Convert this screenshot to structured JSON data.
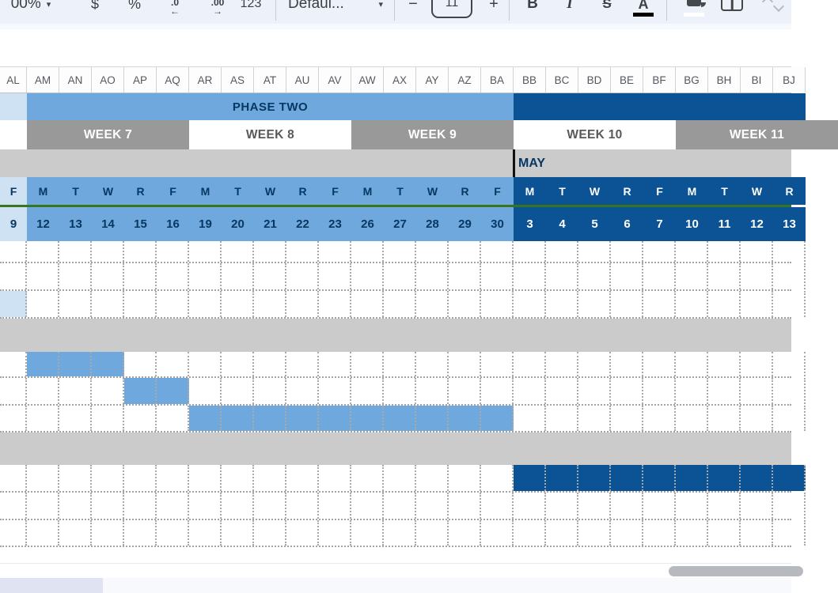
{
  "toolbar": {
    "zoom_value": "00%",
    "currency": "$",
    "percent": "%",
    "decrease_decimal_label": ".0",
    "decrease_decimal_arrow": "←",
    "increase_decimal_label": ".00",
    "increase_decimal_arrow": "→",
    "more_formats": "123",
    "font_name": "Defaul...",
    "decrease_font_size": "−",
    "font_size": "11",
    "increase_font_size": "+",
    "bold": "B",
    "italic": "I",
    "strikethrough": "S",
    "text_color": "A"
  },
  "columns": [
    "AL",
    "AM",
    "AN",
    "AO",
    "AP",
    "AQ",
    "AR",
    "AS",
    "AT",
    "AU",
    "AV",
    "AW",
    "AX",
    "AY",
    "AZ",
    "BA",
    "BB",
    "BC",
    "BD",
    "BE",
    "BF",
    "BG",
    "BH",
    "BI",
    "BJ"
  ],
  "phase_segments": [
    {
      "label": "",
      "tone": "pale",
      "from": 0,
      "span": 1
    },
    {
      "label": "PHASE TWO",
      "tone": "light",
      "from": 1,
      "span": 15
    },
    {
      "label": "",
      "tone": "dark",
      "from": 16,
      "span": 9
    }
  ],
  "weeks": [
    {
      "label": "WEEK 7",
      "tone": "gray",
      "from": 1,
      "span": 5
    },
    {
      "label": "WEEK 8",
      "tone": "white",
      "from": 6,
      "span": 5
    },
    {
      "label": "WEEK 9",
      "tone": "gray",
      "from": 11,
      "span": 5
    },
    {
      "label": "WEEK 10",
      "tone": "white",
      "from": 16,
      "span": 5
    },
    {
      "label": "WEEK 11",
      "tone": "gray",
      "from": 21,
      "span": 5
    }
  ],
  "month_label": "MAY",
  "day_letters": [
    "F",
    "M",
    "T",
    "W",
    "R",
    "F",
    "M",
    "T",
    "W",
    "R",
    "F",
    "M",
    "T",
    "W",
    "R",
    "F",
    "M",
    "T",
    "W",
    "R",
    "F",
    "M",
    "T",
    "W",
    "R"
  ],
  "dates": [
    "9",
    "12",
    "13",
    "14",
    "15",
    "16",
    "19",
    "20",
    "21",
    "22",
    "23",
    "26",
    "27",
    "28",
    "29",
    "30",
    "3",
    "4",
    "5",
    "6",
    "7",
    "10",
    "11",
    "12",
    "13"
  ],
  "grid_rows": [
    {
      "h": 28,
      "type": "cells"
    },
    {
      "h": 35,
      "type": "cells"
    },
    {
      "h": 35,
      "type": "cells",
      "first_cell": "pale"
    },
    {
      "h": 42,
      "type": "gray"
    },
    {
      "h": 33,
      "type": "cells",
      "bar": {
        "from": 1,
        "to": 3,
        "tone": "light"
      }
    },
    {
      "h": 35,
      "type": "cells",
      "bar": {
        "from": 4,
        "to": 5,
        "tone": "light"
      }
    },
    {
      "h": 34,
      "type": "cells",
      "bar": {
        "from": 6,
        "to": 15,
        "tone": "light"
      }
    },
    {
      "h": 41,
      "type": "gray"
    },
    {
      "h": 35,
      "type": "cells",
      "bar": {
        "from": 16,
        "to": 24,
        "tone": "dark"
      }
    },
    {
      "h": 35,
      "type": "cells"
    },
    {
      "h": 34,
      "type": "cells"
    },
    {
      "h": 20,
      "type": "plain"
    }
  ],
  "colors": {
    "light_blue": "#6fa8dc",
    "pale_blue": "#cfe2f3",
    "dark_blue": "#0b5394",
    "gray_band": "#999999",
    "gray_row": "#cbcbcb",
    "navy_text": "#073763",
    "green_line": "#38761d"
  }
}
